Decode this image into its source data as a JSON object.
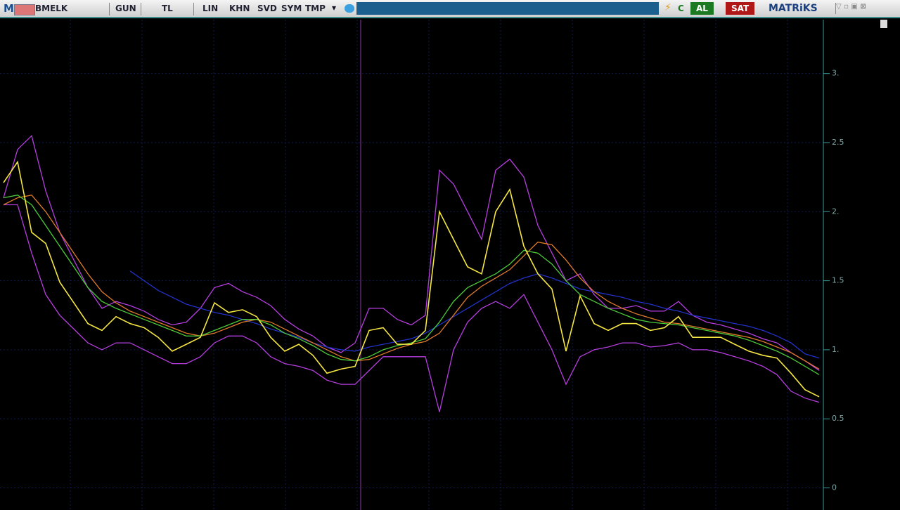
{
  "toolbar": {
    "logo": "M",
    "symbol": "BMELK",
    "period": "GUN",
    "currency": "TL",
    "buttons": [
      "LIN",
      "KHN",
      "SVD",
      "SYM",
      "TMP"
    ],
    "refresh": "C",
    "buy": "AL",
    "sell": "SAT",
    "brand": "MATRiKS"
  },
  "chart_data": {
    "type": "line",
    "grid": true,
    "ylim": [
      -0.16,
      3.39
    ],
    "yticks": [
      0,
      0.5,
      {
        "value": 1,
        "label": "1."
      },
      1.5,
      {
        "value": 2,
        "label": "2."
      },
      2.5,
      {
        "value": 3,
        "label": "3."
      }
    ],
    "series": [
      {
        "color": "#b63ee0",
        "values": [
          2.1,
          2.45,
          2.55,
          2.15,
          1.85,
          1.65,
          1.45,
          1.3,
          1.35,
          1.32,
          1.28,
          1.22,
          1.18,
          1.2,
          1.3,
          1.45,
          1.48,
          1.42,
          1.38,
          1.32,
          1.22,
          1.15,
          1.1,
          1.02,
          0.98,
          1.05,
          1.3,
          1.3,
          1.22,
          1.18,
          1.25,
          2.3,
          2.2,
          2.0,
          1.8,
          2.3,
          2.38,
          2.25,
          1.9,
          1.7,
          1.5,
          1.55,
          1.4,
          1.3,
          1.3,
          1.32,
          1.28,
          1.28,
          1.35,
          1.25,
          1.2,
          1.18,
          1.15,
          1.12,
          1.08,
          1.05,
          0.98,
          0.92,
          0.85
        ]
      },
      {
        "color": "#b63ee0",
        "values": [
          2.05,
          2.05,
          1.7,
          1.4,
          1.25,
          1.15,
          1.05,
          1.0,
          1.05,
          1.05,
          1.0,
          0.95,
          0.9,
          0.9,
          0.95,
          1.05,
          1.1,
          1.1,
          1.05,
          0.95,
          0.9,
          0.88,
          0.85,
          0.78,
          0.75,
          0.75,
          0.85,
          0.95,
          0.95,
          0.95,
          0.95,
          0.55,
          1.0,
          1.2,
          1.3,
          1.35,
          1.3,
          1.4,
          1.2,
          1.0,
          0.75,
          0.95,
          1.0,
          1.02,
          1.05,
          1.05,
          1.02,
          1.03,
          1.05,
          1.0,
          1.0,
          0.98,
          0.95,
          0.92,
          0.88,
          0.82,
          0.7,
          0.65,
          0.62
        ]
      },
      {
        "color": "#2232c8",
        "values": [
          null,
          null,
          null,
          null,
          null,
          null,
          null,
          null,
          null,
          1.57,
          1.5,
          1.43,
          1.38,
          1.33,
          1.3,
          1.27,
          1.25,
          1.22,
          1.19,
          1.15,
          1.12,
          1.09,
          1.05,
          1.02,
          1.0,
          0.99,
          1.02,
          1.04,
          1.06,
          1.08,
          1.12,
          1.18,
          1.24,
          1.3,
          1.36,
          1.42,
          1.48,
          1.52,
          1.55,
          1.52,
          1.48,
          1.44,
          1.42,
          1.4,
          1.38,
          1.35,
          1.33,
          1.3,
          1.28,
          1.25,
          1.23,
          1.21,
          1.19,
          1.17,
          1.14,
          1.1,
          1.05,
          0.97,
          0.94
        ]
      },
      {
        "color": "#e07b2a",
        "values": [
          2.05,
          2.1,
          2.12,
          2.0,
          1.85,
          1.7,
          1.55,
          1.42,
          1.34,
          1.28,
          1.24,
          1.2,
          1.16,
          1.12,
          1.1,
          1.12,
          1.16,
          1.2,
          1.22,
          1.2,
          1.15,
          1.1,
          1.05,
          1.0,
          0.95,
          0.92,
          0.93,
          0.97,
          1.01,
          1.04,
          1.06,
          1.12,
          1.25,
          1.38,
          1.46,
          1.52,
          1.58,
          1.68,
          1.78,
          1.76,
          1.65,
          1.52,
          1.42,
          1.35,
          1.3,
          1.26,
          1.23,
          1.2,
          1.19,
          1.17,
          1.15,
          1.13,
          1.11,
          1.09,
          1.06,
          1.02,
          0.98,
          0.92,
          0.86
        ]
      },
      {
        "color": "#4ccc3a",
        "values": [
          2.1,
          2.12,
          2.05,
          1.9,
          1.75,
          1.6,
          1.45,
          1.35,
          1.3,
          1.26,
          1.22,
          1.18,
          1.14,
          1.1,
          1.1,
          1.14,
          1.18,
          1.22,
          1.22,
          1.18,
          1.12,
          1.08,
          1.03,
          0.97,
          0.93,
          0.92,
          0.95,
          1.0,
          1.03,
          1.05,
          1.08,
          1.2,
          1.35,
          1.45,
          1.5,
          1.55,
          1.62,
          1.72,
          1.7,
          1.62,
          1.5,
          1.4,
          1.35,
          1.3,
          1.26,
          1.22,
          1.2,
          1.19,
          1.18,
          1.16,
          1.14,
          1.12,
          1.1,
          1.07,
          1.03,
          0.99,
          0.94,
          0.88,
          0.82
        ]
      },
      {
        "color": "#f5e642",
        "values": [
          2.21,
          2.36,
          1.85,
          1.77,
          1.49,
          1.34,
          1.19,
          1.14,
          1.24,
          1.19,
          1.16,
          1.09,
          0.99,
          1.04,
          1.09,
          1.34,
          1.27,
          1.29,
          1.24,
          1.09,
          0.99,
          1.04,
          0.96,
          0.83,
          0.86,
          0.88,
          1.14,
          1.16,
          1.04,
          1.04,
          1.14,
          2.0,
          1.8,
          1.6,
          1.55,
          2.0,
          2.16,
          1.75,
          1.55,
          1.44,
          0.99,
          1.39,
          1.19,
          1.14,
          1.19,
          1.19,
          1.14,
          1.16,
          1.24,
          1.09,
          1.09,
          1.09,
          1.04,
          0.99,
          0.96,
          0.94,
          0.83,
          0.71,
          0.66
        ]
      }
    ]
  }
}
